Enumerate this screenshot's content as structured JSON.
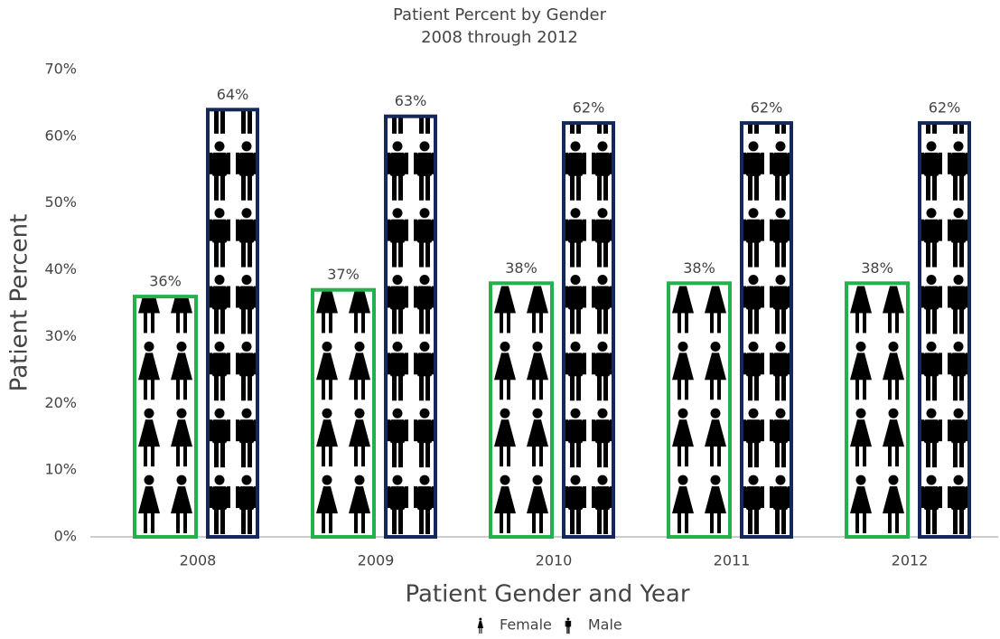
{
  "chart_data": {
    "type": "pictograph",
    "title": "Patient Percent by Gender",
    "subtitle": "2008 through 2012",
    "x_label": "Patient Gender and Year",
    "y_label": "Patient Percent",
    "categories": [
      "2008",
      "2009",
      "2010",
      "2011",
      "2012"
    ],
    "series": [
      {
        "name": "Female",
        "color": "#22b14c",
        "values": [
          36,
          37,
          38,
          38,
          38
        ],
        "value_labels": [
          "36%",
          "37%",
          "38%",
          "38%",
          "38%"
        ]
      },
      {
        "name": "Male",
        "color": "#14285a",
        "values": [
          64,
          63,
          62,
          62,
          62
        ],
        "value_labels": [
          "64%",
          "63%",
          "62%",
          "62%",
          "62%"
        ]
      }
    ],
    "ylim": [
      0,
      70
    ],
    "yticks": [
      {
        "value": 0,
        "label": "0%"
      },
      {
        "value": 10,
        "label": "10%"
      },
      {
        "value": 20,
        "label": "20%"
      },
      {
        "value": 30,
        "label": "30%"
      },
      {
        "value": 40,
        "label": "40%"
      },
      {
        "value": 50,
        "label": "50%"
      },
      {
        "value": 60,
        "label": "60%"
      },
      {
        "value": 70,
        "label": "70%"
      }
    ],
    "legend": "bottom"
  }
}
